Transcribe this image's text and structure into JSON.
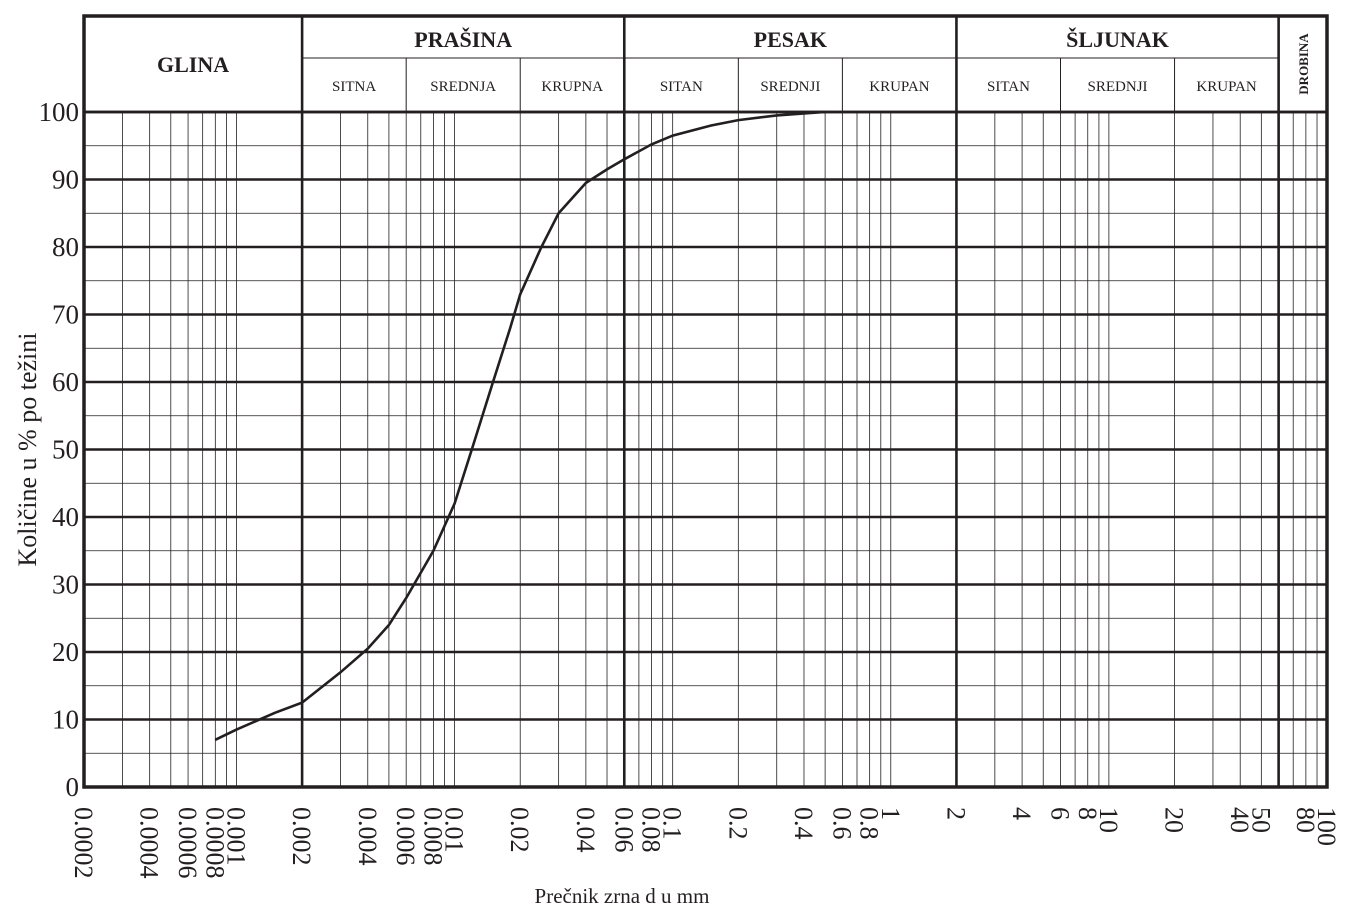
{
  "chart_data": {
    "type": "line",
    "title": "",
    "xlabel": "Prečnik zrna d u mm",
    "ylabel": "Količine  u % po težini",
    "x_scale": "log",
    "xlim": [
      0.0002,
      100
    ],
    "ylim": [
      0,
      100
    ],
    "grid": true,
    "y_ticks": [
      "0",
      "10",
      "20",
      "30",
      "40",
      "50",
      "60",
      "70",
      "80",
      "90",
      "100"
    ],
    "x_tick_labels": [
      {
        "value": 0.0002,
        "label": "0.0002"
      },
      {
        "value": 0.0004,
        "label": "0.0004"
      },
      {
        "value": 0.0006,
        "label": "0.0006"
      },
      {
        "value": 0.0008,
        "label": "0.0008"
      },
      {
        "value": 0.001,
        "label": "0.001"
      },
      {
        "value": 0.002,
        "label": "0.002"
      },
      {
        "value": 0.004,
        "label": "0.004"
      },
      {
        "value": 0.006,
        "label": "0.006"
      },
      {
        "value": 0.008,
        "label": "0.008"
      },
      {
        "value": 0.01,
        "label": "0.01"
      },
      {
        "value": 0.02,
        "label": "0.02"
      },
      {
        "value": 0.04,
        "label": "0.04"
      },
      {
        "value": 0.06,
        "label": "0.06"
      },
      {
        "value": 0.08,
        "label": "0.08"
      },
      {
        "value": 0.1,
        "label": "0.1"
      },
      {
        "value": 0.2,
        "label": "0.2"
      },
      {
        "value": 0.4,
        "label": "0.4"
      },
      {
        "value": 0.6,
        "label": "0.6"
      },
      {
        "value": 0.8,
        "label": "0.8"
      },
      {
        "value": 1,
        "label": "1"
      },
      {
        "value": 2,
        "label": "2"
      },
      {
        "value": 4,
        "label": "4"
      },
      {
        "value": 6,
        "label": "6"
      },
      {
        "value": 8,
        "label": "8"
      },
      {
        "value": 10,
        "label": "10"
      },
      {
        "value": 20,
        "label": "20"
      },
      {
        "value": 40,
        "label": "40"
      },
      {
        "value": 50,
        "label": "50"
      },
      {
        "value": 80,
        "label": "80"
      },
      {
        "value": 100,
        "label": "100"
      }
    ],
    "series": [
      {
        "x": [
          0.0008,
          0.001,
          0.0015,
          0.002,
          0.003,
          0.004,
          0.005,
          0.006,
          0.008,
          0.01,
          0.012,
          0.015,
          0.018,
          0.02,
          0.025,
          0.03,
          0.04,
          0.05,
          0.06,
          0.08,
          0.1,
          0.15,
          0.2,
          0.3,
          0.4,
          0.5
        ],
        "y": [
          7,
          8.5,
          11,
          12.5,
          17,
          20.5,
          24,
          28,
          35,
          42,
          50,
          60,
          68,
          73,
          80,
          85,
          89.5,
          91.5,
          93,
          95.2,
          96.5,
          98,
          98.8,
          99.5,
          99.8,
          100
        ]
      }
    ],
    "soil_classes": [
      {
        "name": "GLINA",
        "from": 0.0002,
        "to": 0.002,
        "subs": []
      },
      {
        "name": "PRAŠINA",
        "from": 0.002,
        "to": 0.06,
        "subs": [
          {
            "name": "SITNA",
            "from": 0.002,
            "to": 0.006
          },
          {
            "name": "SREDNJA",
            "from": 0.006,
            "to": 0.02
          },
          {
            "name": "KRUPNA",
            "from": 0.02,
            "to": 0.06
          }
        ]
      },
      {
        "name": "PESAK",
        "from": 0.06,
        "to": 2,
        "subs": [
          {
            "name": "SITAN",
            "from": 0.06,
            "to": 0.2
          },
          {
            "name": "SREDNJI",
            "from": 0.2,
            "to": 0.6
          },
          {
            "name": "KRUPAN",
            "from": 0.6,
            "to": 2
          }
        ]
      },
      {
        "name": "ŠLJUNAK",
        "from": 2,
        "to": 60,
        "subs": [
          {
            "name": "SITAN",
            "from": 2,
            "to": 6
          },
          {
            "name": "SREDNJI",
            "from": 6,
            "to": 20
          },
          {
            "name": "KRUPAN",
            "from": 20,
            "to": 60
          }
        ]
      },
      {
        "name": "DROBINA",
        "from": 60,
        "to": 100,
        "subs": []
      }
    ]
  }
}
